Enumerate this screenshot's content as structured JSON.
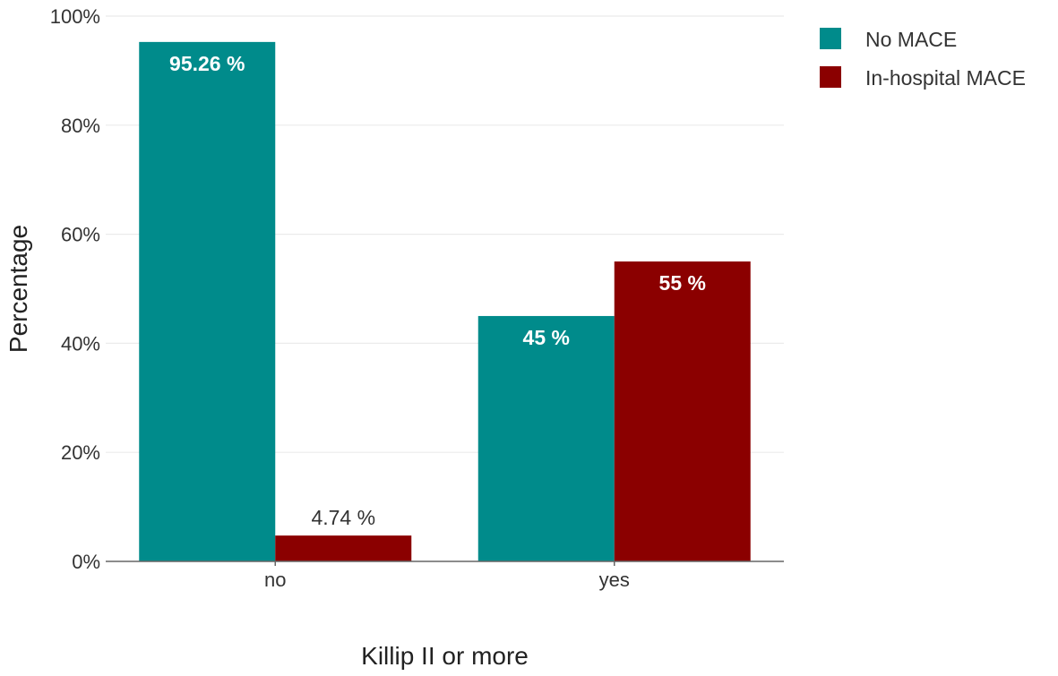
{
  "chart_data": {
    "type": "bar",
    "categories": [
      "no",
      "yes"
    ],
    "series": [
      {
        "name": "No MACE",
        "color": "#008B8B",
        "values": [
          95.26,
          45
        ],
        "labels": [
          "95.26 %",
          "45 %"
        ]
      },
      {
        "name": "In-hospital MACE",
        "color": "#8B0000",
        "values": [
          4.74,
          55
        ],
        "labels": [
          "4.74 %",
          "55 %"
        ]
      }
    ],
    "title": "",
    "xlabel": "Killip II or more",
    "ylabel": "Percentage",
    "ylim": [
      0,
      100
    ],
    "yticks": [
      0,
      20,
      40,
      60,
      80,
      100
    ],
    "ytick_labels": [
      "0%",
      "20%",
      "40%",
      "60%",
      "80%",
      "100%"
    ],
    "grid": true,
    "legend_position": "top-right"
  }
}
